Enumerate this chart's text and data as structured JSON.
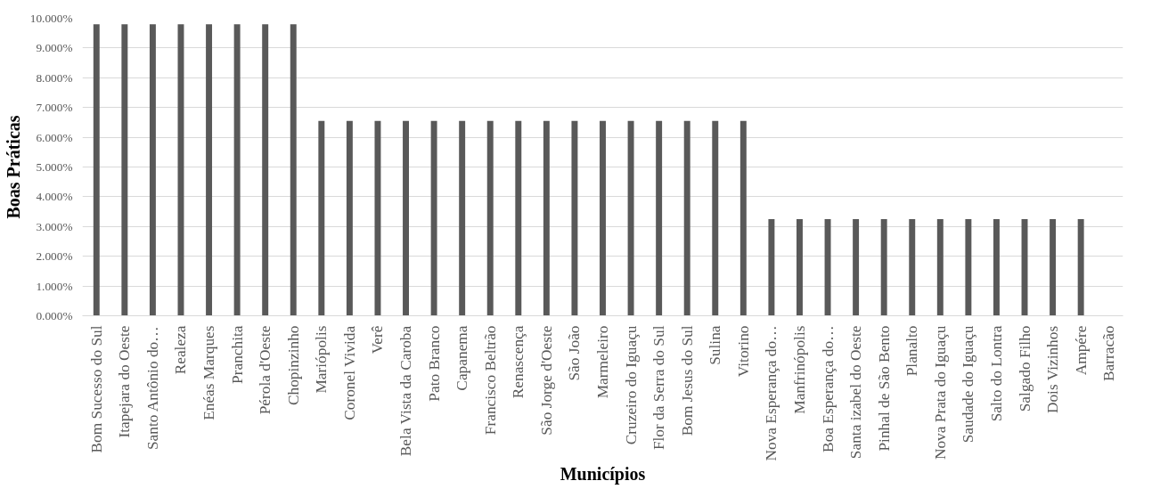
{
  "chart_data": {
    "type": "bar",
    "xlabel": "Municípios",
    "ylabel": "Boas Práticas",
    "categories": [
      "Bom Sucesso do Sul",
      "Itapejara do Oeste",
      "Santo Antônio do…",
      "Realeza",
      "Enéas Marques",
      "Pranchita",
      "Pérola d'Oeste",
      "Chopinzinho",
      "Mariópolis",
      "Coronel Vivida",
      "Verê",
      "Bela Vista da Caroba",
      "Pato Branco",
      "Capanema",
      "Francisco Beltrão",
      "Renascença",
      "São Jorge d'Oeste",
      "São João",
      "Marmeleiro",
      "Cruzeiro do Iguaçu",
      "Flor da Serra do Sul",
      "Bom Jesus do Sul",
      "Sulina",
      "Vitorino",
      "Nova Esperança do…",
      "Manfrinópolis",
      "Boa Esperança do…",
      "Santa izabel do Oeste",
      "Pinhal de São Bento",
      "Planalto",
      "Nova Prata do Iguaçu",
      "Saudade do Iguaçu",
      "Salto do Lontra",
      "Salgado Filho",
      "Dois Vizinhos",
      "Ampére",
      "Barracão"
    ],
    "values": [
      9.8,
      9.8,
      9.8,
      9.8,
      9.8,
      9.8,
      9.8,
      9.8,
      6.55,
      6.55,
      6.55,
      6.55,
      6.55,
      6.55,
      6.55,
      6.55,
      6.55,
      6.55,
      6.55,
      6.55,
      6.55,
      6.55,
      6.55,
      6.55,
      3.25,
      3.25,
      3.25,
      3.25,
      3.25,
      3.25,
      3.25,
      3.25,
      3.25,
      3.25,
      3.25,
      3.25,
      0
    ],
    "color": "#595959",
    "ylim": [
      0,
      10
    ],
    "yticks": [
      {
        "value": 0,
        "label": "0.000%"
      },
      {
        "value": 1,
        "label": "1.000%"
      },
      {
        "value": 2,
        "label": "2.000%"
      },
      {
        "value": 3,
        "label": "3.000%"
      },
      {
        "value": 4,
        "label": "4.000%"
      },
      {
        "value": 5,
        "label": "5.000%"
      },
      {
        "value": 6,
        "label": "6.000%"
      },
      {
        "value": 7,
        "label": "7.000%"
      },
      {
        "value": 8,
        "label": "8.000%"
      },
      {
        "value": 9,
        "label": "9.000%"
      },
      {
        "value": 10,
        "label": "10.000%"
      }
    ],
    "grid": "y"
  }
}
